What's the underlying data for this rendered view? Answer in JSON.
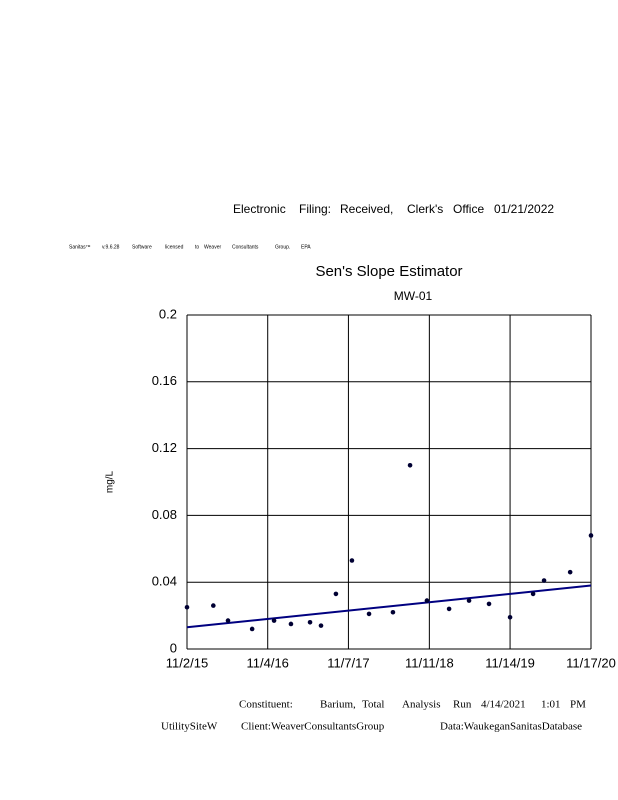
{
  "header": {
    "filing": [
      "Electronic",
      "Filing:",
      "Received,",
      "Clerk's",
      "Office",
      "01/21/2022"
    ],
    "software": [
      "Sanitas™",
      "v.9.6.28",
      "Software",
      "licensed",
      "to",
      "Weaver",
      "Consultants",
      "Group.",
      "EPA"
    ]
  },
  "chart_data": {
    "type": "scatter",
    "title": "Sen's Slope Estimator",
    "subtitle": "MW-01",
    "y_label": "mg/L",
    "x": [
      "11/2/15",
      "3/1/16",
      "5/7/16",
      "8/25/16",
      "12/3/16",
      "2/18/17",
      "5/16/17",
      "7/5/17",
      "9/11/17",
      "11/23/17",
      "2/9/18",
      "5/29/18",
      "8/15/18",
      "10/31/18",
      "2/9/19",
      "5/11/19",
      "8/10/19",
      "11/14/19",
      "2/27/20",
      "4/17/20",
      "8/14/20",
      "11/17/20"
    ],
    "values": [
      0.025,
      0.026,
      0.017,
      0.012,
      0.017,
      0.015,
      0.016,
      0.014,
      0.033,
      0.053,
      0.021,
      0.022,
      0.11,
      0.029,
      0.024,
      0.029,
      0.027,
      0.019,
      0.033,
      0.041,
      0.046,
      0.068
    ],
    "color": "#000033",
    "trend_line": {
      "x": [
        "11/2/15",
        "11/17/20"
      ],
      "values": [
        0.013,
        0.038
      ],
      "color": "#000080"
    },
    "xlim": [
      "11/2/15",
      "11/17/20"
    ],
    "xticks": [
      "11/2/15",
      "11/4/16",
      "11/7/17",
      "11/11/18",
      "11/14/19",
      "11/17/20"
    ],
    "ylim": [
      0,
      0.2
    ],
    "yticks": [
      0,
      0.04,
      0.08,
      0.12,
      0.16,
      0.2
    ],
    "grid": true
  },
  "footer": {
    "line1": [
      "Constituent:",
      "Barium,",
      "Total",
      "Analysis",
      "Run",
      "4/14/2021",
      "1:01",
      "PM"
    ],
    "line2": [
      "UtilitySiteW",
      "Client:WeaverConsultantsGroup",
      "Data:WaukeganSanitasDatabase"
    ]
  }
}
